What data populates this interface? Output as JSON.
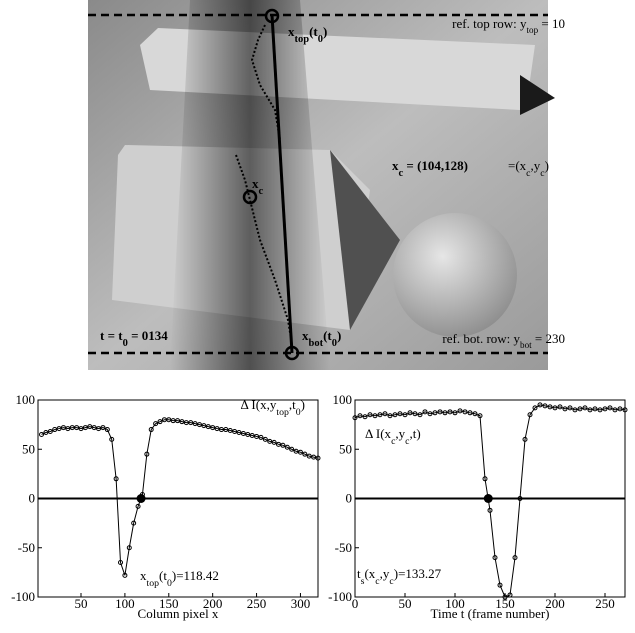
{
  "image": {
    "annotations": [
      {
        "parts": [
          {
            "text": "x"
          },
          {
            "text": "top",
            "sub": true
          },
          {
            "text": "(t"
          },
          {
            "text": "0",
            "sub": true
          },
          {
            "text": ")"
          }
        ],
        "bold": true
      },
      {
        "parts": [
          {
            "text": "ref. top row: y"
          },
          {
            "text": "top",
            "sub": true
          },
          {
            "text": " = 10"
          }
        ]
      },
      {
        "parts": [
          {
            "text": "x"
          },
          {
            "text": "c",
            "sub": true
          },
          {
            "text": " = (104,128)"
          }
        ],
        "bold": true
      },
      {
        "parts": [
          {
            "text": "=(x"
          },
          {
            "text": "c",
            "sub": true
          },
          {
            "text": ",y"
          },
          {
            "text": "c",
            "sub": true
          },
          {
            "text": ")"
          }
        ]
      },
      {
        "parts": [
          {
            "text": "x"
          },
          {
            "text": "c",
            "sub": true
          }
        ],
        "bold": true
      },
      {
        "parts": [
          {
            "text": "t = t"
          },
          {
            "text": "0",
            "sub": true
          },
          {
            "text": " = 0134"
          }
        ],
        "bold": true
      },
      {
        "parts": [
          {
            "text": "x"
          },
          {
            "text": "bot",
            "sub": true
          },
          {
            "text": "(t"
          },
          {
            "text": "0",
            "sub": true
          },
          {
            "text": ")"
          }
        ],
        "bold": true
      },
      {
        "parts": [
          {
            "text": "ref. bot. row: y"
          },
          {
            "text": "bot",
            "sub": true
          },
          {
            "text": " = 230"
          }
        ]
      }
    ]
  },
  "chart_data": [
    {
      "type": "line",
      "xlabel": "Column pixel x",
      "xlim": [
        1,
        320
      ],
      "xticks": [
        50,
        100,
        150,
        200,
        250,
        300
      ],
      "ylim": [
        -100,
        100
      ],
      "yticks": [
        -100,
        -50,
        0,
        50,
        100
      ],
      "color": "#000000",
      "crossing": 118.42,
      "annotations": [
        {
          "parts": [
            {
              "text": "Δ I(x,y"
            },
            {
              "text": "top",
              "sub": true
            },
            {
              "text": ",t"
            },
            {
              "text": "0",
              "sub": true
            },
            {
              "text": ")"
            }
          ]
        },
        {
          "parts": [
            {
              "text": "x"
            },
            {
              "text": "top",
              "sub": true
            },
            {
              "text": "(t"
            },
            {
              "text": "0",
              "sub": true
            },
            {
              "text": ")=118.42"
            }
          ]
        }
      ],
      "x": [
        5,
        10,
        15,
        20,
        25,
        30,
        35,
        40,
        45,
        50,
        55,
        60,
        65,
        70,
        75,
        80,
        85,
        90,
        95,
        100,
        105,
        110,
        115,
        120,
        125,
        130,
        135,
        140,
        145,
        150,
        155,
        160,
        165,
        170,
        175,
        180,
        185,
        190,
        195,
        200,
        205,
        210,
        215,
        220,
        225,
        230,
        235,
        240,
        245,
        250,
        255,
        260,
        265,
        270,
        275,
        280,
        285,
        290,
        295,
        300,
        305,
        310,
        315,
        320
      ],
      "values": [
        65,
        67,
        68,
        70,
        71,
        72,
        71,
        72,
        72,
        71,
        72,
        73,
        72,
        71,
        72,
        70,
        60,
        20,
        -65,
        -78,
        -50,
        -25,
        -8,
        4,
        45,
        70,
        76,
        78,
        80,
        80,
        79,
        79,
        78,
        77,
        77,
        76,
        75,
        74,
        73,
        72,
        71,
        70,
        70,
        69,
        68,
        67,
        66,
        65,
        64,
        63,
        62,
        60,
        58,
        57,
        55,
        54,
        52,
        50,
        48,
        47,
        45,
        43,
        42,
        41
      ]
    },
    {
      "type": "line",
      "xlabel": "Time t (frame number)",
      "xlim": [
        0,
        270
      ],
      "xticks": [
        0,
        50,
        100,
        150,
        200,
        250
      ],
      "ylim": [
        -100,
        100
      ],
      "yticks": [
        -100,
        -50,
        0,
        50,
        100
      ],
      "color": "#000000",
      "crossing": 133.27,
      "annotations": [
        {
          "parts": [
            {
              "text": "Δ I(x"
            },
            {
              "text": "c",
              "sub": true
            },
            {
              "text": ",y"
            },
            {
              "text": "c",
              "sub": true
            },
            {
              "text": ",t)"
            }
          ]
        },
        {
          "parts": [
            {
              "text": "t"
            },
            {
              "text": "s",
              "sub": true
            },
            {
              "text": "(x"
            },
            {
              "text": "c",
              "sub": true
            },
            {
              "text": ",y"
            },
            {
              "text": "c",
              "sub": true
            },
            {
              "text": ")=133.27"
            }
          ]
        }
      ],
      "x": [
        0,
        5,
        10,
        15,
        20,
        25,
        30,
        35,
        40,
        45,
        50,
        55,
        60,
        65,
        70,
        75,
        80,
        85,
        90,
        95,
        100,
        105,
        110,
        115,
        120,
        125,
        130,
        135,
        140,
        145,
        150,
        155,
        160,
        165,
        170,
        175,
        180,
        185,
        190,
        195,
        200,
        205,
        210,
        215,
        220,
        225,
        230,
        235,
        240,
        245,
        250,
        255,
        260,
        265,
        270
      ],
      "values": [
        82,
        84,
        83,
        85,
        84,
        85,
        86,
        84,
        85,
        86,
        85,
        87,
        86,
        85,
        88,
        86,
        87,
        88,
        87,
        88,
        87,
        89,
        88,
        87,
        86,
        84,
        20,
        -12,
        -60,
        -88,
        -100,
        -98,
        -60,
        0,
        60,
        85,
        92,
        95,
        94,
        93,
        92,
        93,
        91,
        92,
        90,
        91,
        92,
        90,
        91,
        90,
        91,
        92,
        90,
        91,
        90
      ]
    }
  ]
}
